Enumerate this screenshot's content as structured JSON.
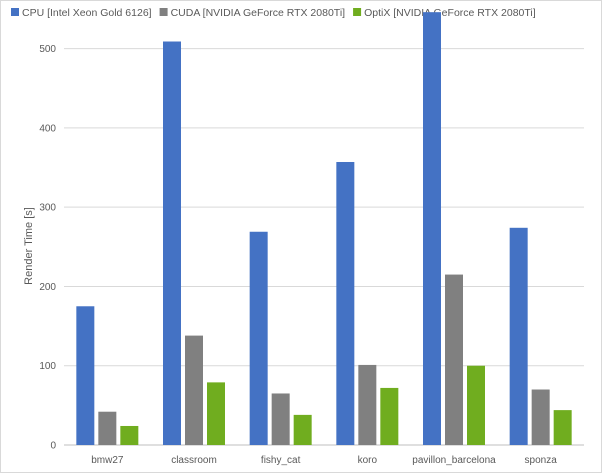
{
  "chart_data": {
    "type": "bar",
    "title": "",
    "xlabel": "",
    "ylabel": "Render Time [s]",
    "ylim": [
      0,
      550
    ],
    "yticks": [
      0,
      100,
      200,
      300,
      400,
      500
    ],
    "grid": true,
    "legend_position": "top",
    "categories": [
      "bmw27",
      "classroom",
      "fishy_cat",
      "koro",
      "pavillon_barcelona",
      "sponza"
    ],
    "series": [
      {
        "name": "CPU [Intel Xeon Gold 6126]",
        "color": "#4472c4",
        "values": [
          175,
          509,
          269,
          357,
          546,
          274
        ]
      },
      {
        "name": "CUDA [NVIDIA GeForce RTX 2080Ti]",
        "color": "#808080",
        "values": [
          42,
          138,
          65,
          101,
          215,
          70
        ]
      },
      {
        "name": "OptiX [NVIDIA GeForce RTX 2080Ti]",
        "color": "#70ad1f",
        "values": [
          24,
          79,
          38,
          72,
          100,
          44
        ]
      }
    ]
  }
}
